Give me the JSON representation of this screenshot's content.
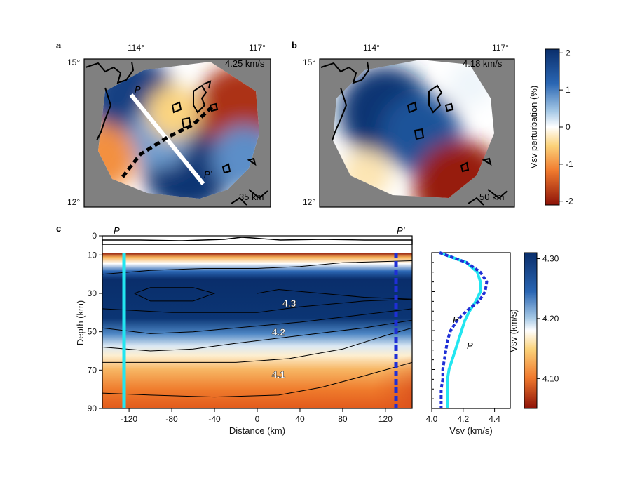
{
  "panel_labels": {
    "a": "a",
    "b": "b",
    "c": "c"
  },
  "map_a": {
    "lon_ticks": [
      "114°",
      "117°"
    ],
    "lat_ticks": [
      "15°",
      "12°"
    ],
    "velocity_label": "4.25 km/s",
    "depth_label": "35 km",
    "profile_start": "P",
    "profile_end": "P’"
  },
  "map_b": {
    "lon_ticks": [
      "114°",
      "117°"
    ],
    "lat_ticks": [
      "15°",
      "12°"
    ],
    "velocity_label": "4.18 km/s",
    "depth_label": "50 km"
  },
  "colorbar_top": {
    "label": "Vsv perturbation (%)",
    "ticks": [
      "2",
      "1",
      "0",
      "-1",
      "-2"
    ],
    "range": [
      -2.1,
      2.1
    ]
  },
  "section_c": {
    "left_end_label": "P",
    "right_end_label": "P’",
    "ylabel": "Depth (km)",
    "xlabel": "Distance (km)",
    "contour_labels": [
      "4.3",
      "4.2",
      "4.1"
    ]
  },
  "colorbar_bottom": {
    "label": "Vsv (km/s)",
    "ticks": [
      "4.30",
      "4.20",
      "4.10"
    ],
    "range": [
      4.05,
      4.31
    ]
  },
  "chart_data": [
    {
      "type": "heatmap",
      "panel": "a",
      "title": "",
      "quantity": "Vsv perturbation (%)",
      "depth_km": 35,
      "reference_velocity_km_s": 4.25,
      "lon_range": [
        112.6,
        117.6
      ],
      "lat_range": [
        11.8,
        15.4
      ],
      "anomalies": [
        {
          "lon": 113.9,
          "lat": 14.4,
          "value": 1.8
        },
        {
          "lon": 115.4,
          "lat": 12.8,
          "value": 2.0
        },
        {
          "lon": 114.6,
          "lat": 13.5,
          "value": 0.8
        },
        {
          "lon": 116.8,
          "lat": 14.2,
          "value": -1.8
        },
        {
          "lon": 116.9,
          "lat": 13.0,
          "value": 0.9
        },
        {
          "lon": 113.1,
          "lat": 13.0,
          "value": -1.0
        },
        {
          "lon": 115.0,
          "lat": 14.1,
          "value": -0.5
        }
      ]
    },
    {
      "type": "heatmap",
      "panel": "b",
      "title": "",
      "quantity": "Vsv perturbation (%)",
      "depth_km": 50,
      "reference_velocity_km_s": 4.18,
      "lon_range": [
        112.6,
        117.6
      ],
      "lat_range": [
        11.8,
        15.4
      ],
      "anomalies": [
        {
          "lon": 114.3,
          "lat": 14.1,
          "value": 2.0
        },
        {
          "lon": 115.2,
          "lat": 13.6,
          "value": 1.5
        },
        {
          "lon": 116.2,
          "lat": 12.3,
          "value": -2.0
        },
        {
          "lon": 116.5,
          "lat": 14.8,
          "value": 0.1
        },
        {
          "lon": 113.8,
          "lat": 12.6,
          "value": -0.3
        }
      ]
    },
    {
      "type": "heatmap",
      "panel": "c",
      "title": "",
      "quantity": "Vsv (km/s)",
      "xlabel": "Distance (km)",
      "ylabel": "Depth (km)",
      "xlim": [
        -145,
        145
      ],
      "ylim": [
        90,
        0
      ],
      "xticks": [
        -120,
        -80,
        -40,
        0,
        40,
        80,
        120
      ],
      "yticks": [
        0,
        10,
        30,
        50,
        70,
        90
      ],
      "velocity_vs_depth_km_s": {
        "depth": [
          8,
          10,
          12,
          15,
          20,
          25,
          30,
          35,
          40,
          45,
          50,
          55,
          60,
          65,
          70,
          75,
          80,
          85,
          90
        ],
        "vsv": [
          4.05,
          4.15,
          4.24,
          4.29,
          4.32,
          4.33,
          4.34,
          4.33,
          4.3,
          4.26,
          4.22,
          4.19,
          4.16,
          4.13,
          4.11,
          4.1,
          4.09,
          4.08,
          4.08
        ]
      },
      "contours": [
        {
          "level": 4.3,
          "label": "4.3"
        },
        {
          "level": 4.2,
          "label": "4.2"
        },
        {
          "level": 4.1,
          "label": "4.1"
        }
      ],
      "profile_lines": [
        {
          "name": "P",
          "x": -130,
          "style": "solid cyan"
        },
        {
          "name": "P’",
          "x": 130,
          "style": "dashed blue"
        }
      ]
    },
    {
      "type": "line",
      "panel": "c-profile",
      "xlabel": "Vsv (km/s)",
      "xlim": [
        4.0,
        4.5
      ],
      "xticks": [
        4.0,
        4.2,
        4.4
      ],
      "ylim": [
        90,
        10
      ],
      "series": [
        {
          "name": "P",
          "color": "#22e6f0",
          "style": "solid",
          "depth": [
            10,
            15,
            20,
            25,
            30,
            35,
            40,
            45,
            50,
            55,
            60,
            65,
            70,
            75,
            80,
            85,
            90
          ],
          "vsv": [
            4.05,
            4.22,
            4.29,
            4.31,
            4.31,
            4.28,
            4.24,
            4.21,
            4.19,
            4.17,
            4.15,
            4.13,
            4.11,
            4.1,
            4.1,
            4.1,
            4.1
          ]
        },
        {
          "name": "P’",
          "color": "#1f2fd6",
          "style": "dashed",
          "depth": [
            10,
            15,
            20,
            25,
            30,
            35,
            40,
            45,
            50,
            55,
            60,
            65,
            70,
            75,
            80,
            85,
            90
          ],
          "vsv": [
            4.05,
            4.22,
            4.31,
            4.35,
            4.34,
            4.3,
            4.22,
            4.16,
            4.12,
            4.1,
            4.09,
            4.08,
            4.07,
            4.07,
            4.06,
            4.06,
            4.06
          ]
        }
      ]
    }
  ]
}
